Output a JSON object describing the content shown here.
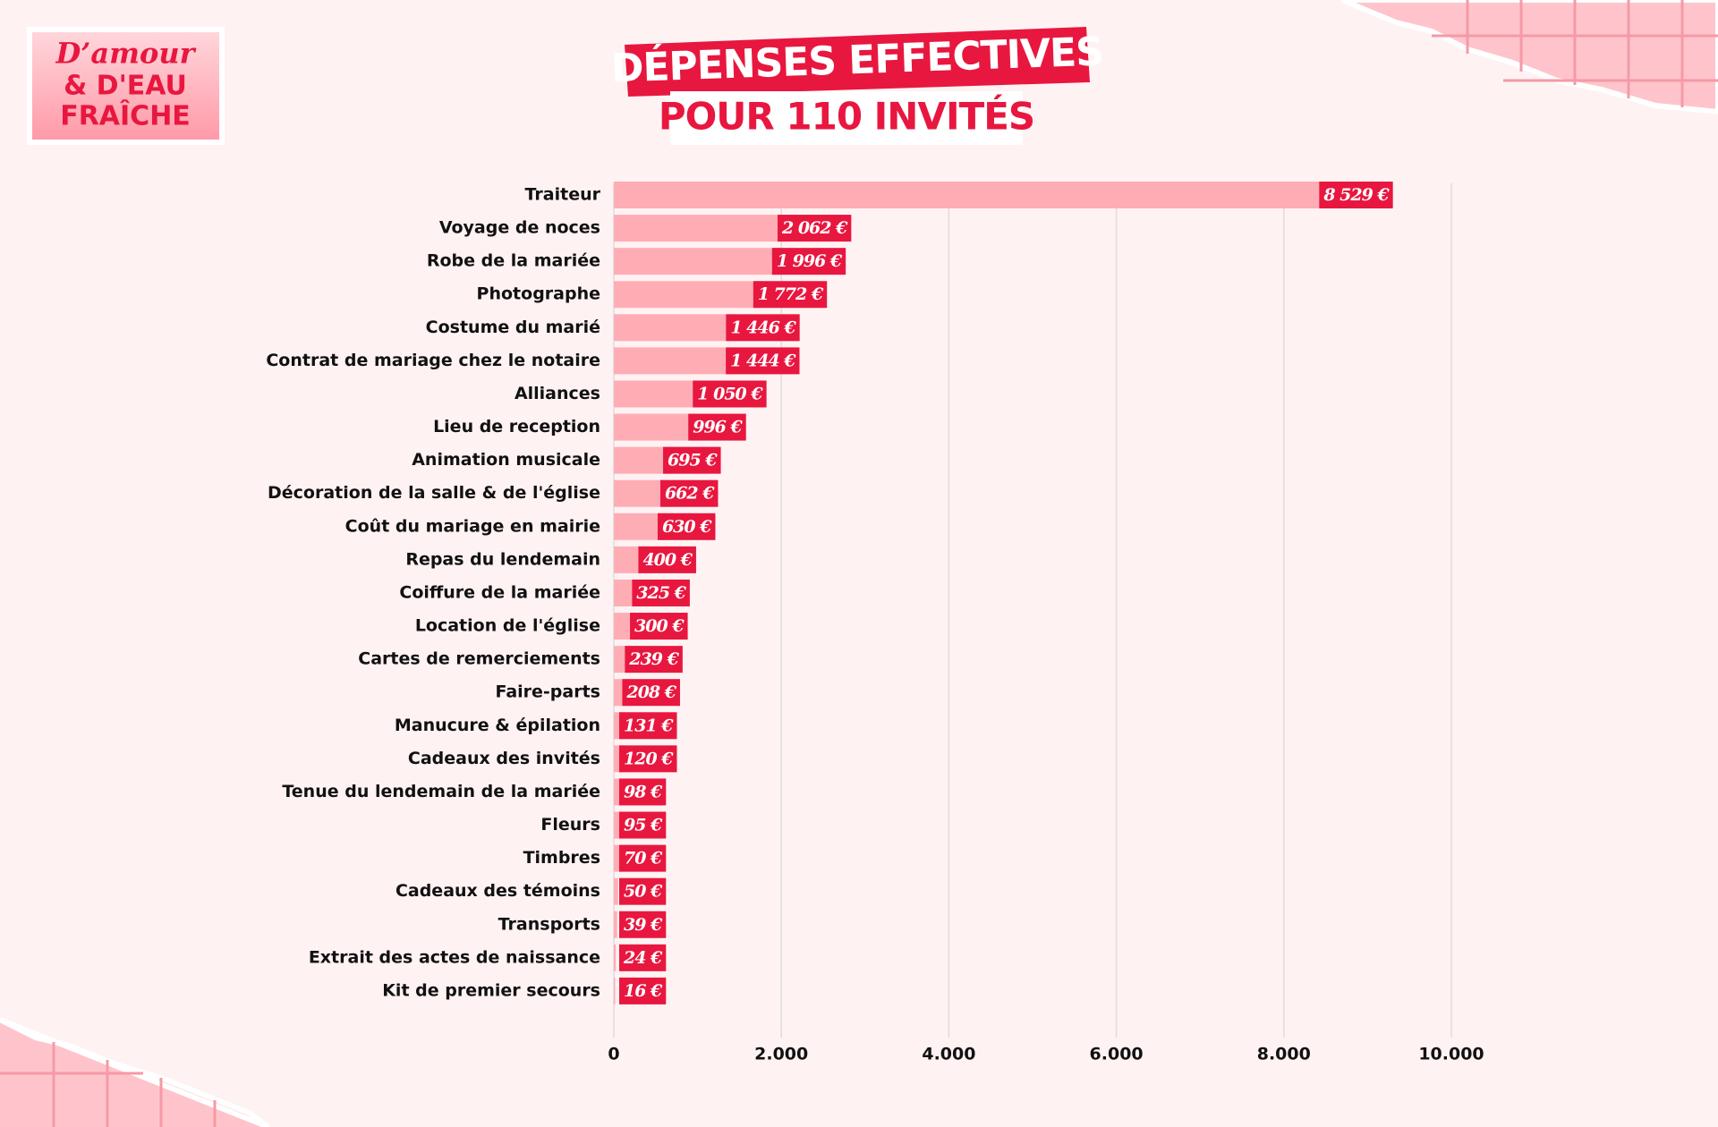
{
  "logo": [
    "D’amour",
    "& D'EAU",
    "FRAÎCHE"
  ],
  "chart_data": {
    "type": "hbar",
    "title": "DÉPENSES EFFECTIVES",
    "subtitle": "POUR 110 INVITÉS",
    "categories": [
      "Traiteur",
      "Voyage de noces",
      "Robe de la mariée",
      "Photographe",
      "Costume du marié",
      "Contrat de mariage chez le notaire",
      "Alliances",
      "Lieu de reception",
      "Animation musicale",
      "Décoration de la salle & de l'église",
      "Coût du mariage en mairie",
      "Repas du lendemain",
      "Coiffure de la mariée",
      "Location de l'église",
      "Cartes de remerciements",
      "Faire-parts",
      "Manucure & épilation",
      "Cadeaux des invités",
      "Tenue du lendemain de la mariée",
      "Fleurs",
      "Timbres",
      "Cadeaux des témoins",
      "Transports",
      "Extrait des actes de naissance",
      "Kit de premier secours"
    ],
    "values": [
      8529,
      2062,
      1996,
      1772,
      1446,
      1444,
      1050,
      996,
      695,
      662,
      630,
      400,
      325,
      300,
      239,
      208,
      131,
      120,
      98,
      95,
      70,
      50,
      39,
      24,
      16
    ],
    "value_labels": [
      "8 529 €",
      "2 062 €",
      "1 996 €",
      "1 772 €",
      "1 446 €",
      "1 444 €",
      "1 050 €",
      "996 €",
      "695 €",
      "662 €",
      "630 €",
      "400 €",
      "325 €",
      "300 €",
      "239 €",
      "208 €",
      "131 €",
      "120 €",
      "98 €",
      "95 €",
      "70 €",
      "50 €",
      "39 €",
      "24 €",
      "16 €"
    ],
    "color": "#ffadb5",
    "label_color": "#e8173f",
    "xlim": [
      0,
      10000
    ],
    "xticks": [
      0,
      {
        "value": 2000,
        "label": "2.000"
      },
      {
        "value": 4000,
        "label": "4.000"
      },
      {
        "value": 6000,
        "label": "6.000"
      },
      {
        "value": 8000,
        "label": "8.000"
      },
      {
        "value": 10000,
        "label": "10.000"
      }
    ],
    "grid": true
  }
}
